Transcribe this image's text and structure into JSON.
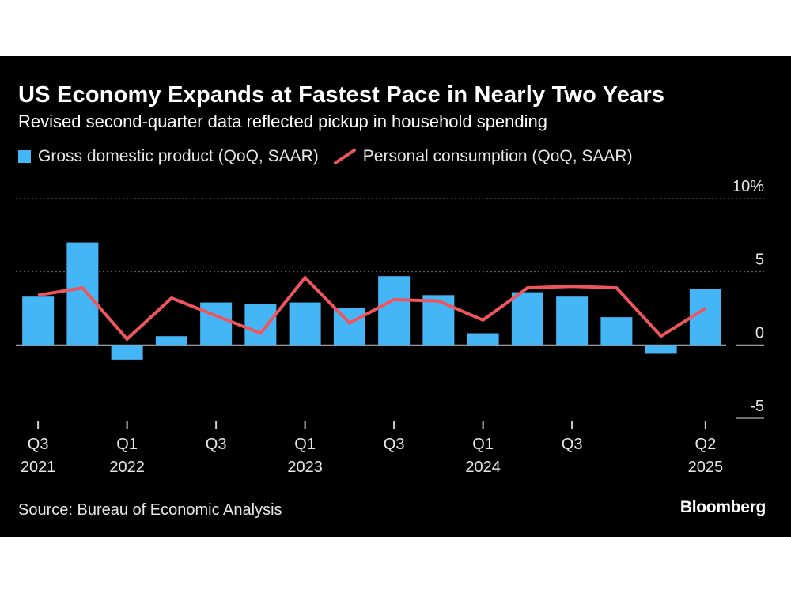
{
  "title": "US Economy Expands at Fastest Pace in Nearly Two Years",
  "subtitle": "Revised second-quarter data reflected pickup in household spending",
  "source": "Source: Bureau of Economic Analysis",
  "logo": "Bloomberg",
  "colors": {
    "bar": "#44b5f5",
    "line": "#f0555e",
    "background": "#000000",
    "text": "#e6e6e6",
    "grid": "#6e6e6e"
  },
  "chart_data": {
    "type": "bar+line",
    "title": "US Economy Expands at Fastest Pace in Nearly Two Years",
    "subtitle": "Revised second-quarter data reflected pickup in household spending",
    "quarters": [
      "Q3 2021",
      "Q4 2021",
      "Q1 2022",
      "Q2 2022",
      "Q3 2022",
      "Q4 2022",
      "Q1 2023",
      "Q2 2023",
      "Q3 2023",
      "Q4 2023",
      "Q1 2024",
      "Q2 2024",
      "Q3 2024",
      "Q4 2024",
      "Q1 2025",
      "Q2 2025"
    ],
    "series": [
      {
        "name": "Gross domestic product (QoQ, SAAR)",
        "type": "bar",
        "values": [
          3.3,
          7.0,
          -1.0,
          0.6,
          2.9,
          2.8,
          2.9,
          2.5,
          4.7,
          3.4,
          0.8,
          3.6,
          3.3,
          1.9,
          -0.6,
          3.8
        ]
      },
      {
        "name": "Personal consumption (QoQ, SAAR)",
        "type": "line",
        "values": [
          3.4,
          3.9,
          0.4,
          3.2,
          2.0,
          0.8,
          4.6,
          1.5,
          3.1,
          3.0,
          1.7,
          3.9,
          4.0,
          3.9,
          0.6,
          2.5
        ]
      }
    ],
    "x_ticks": [
      {
        "index": 0,
        "quarter": "Q3",
        "year": "2021"
      },
      {
        "index": 2,
        "quarter": "Q1",
        "year": "2022"
      },
      {
        "index": 4,
        "quarter": "Q3",
        "year": ""
      },
      {
        "index": 6,
        "quarter": "Q1",
        "year": "2023"
      },
      {
        "index": 8,
        "quarter": "Q3",
        "year": ""
      },
      {
        "index": 10,
        "quarter": "Q1",
        "year": "2024"
      },
      {
        "index": 12,
        "quarter": "Q3",
        "year": ""
      },
      {
        "index": 15,
        "quarter": "Q2",
        "year": "2025"
      }
    ],
    "y_ticks": [
      {
        "value": 10,
        "label": "10%"
      },
      {
        "value": 5,
        "label": "5"
      },
      {
        "value": 0,
        "label": "0"
      },
      {
        "value": -5,
        "label": "-5"
      }
    ],
    "ylim": [
      -5,
      10
    ],
    "xlabel": "",
    "ylabel": "",
    "legend_position": "top-left"
  }
}
